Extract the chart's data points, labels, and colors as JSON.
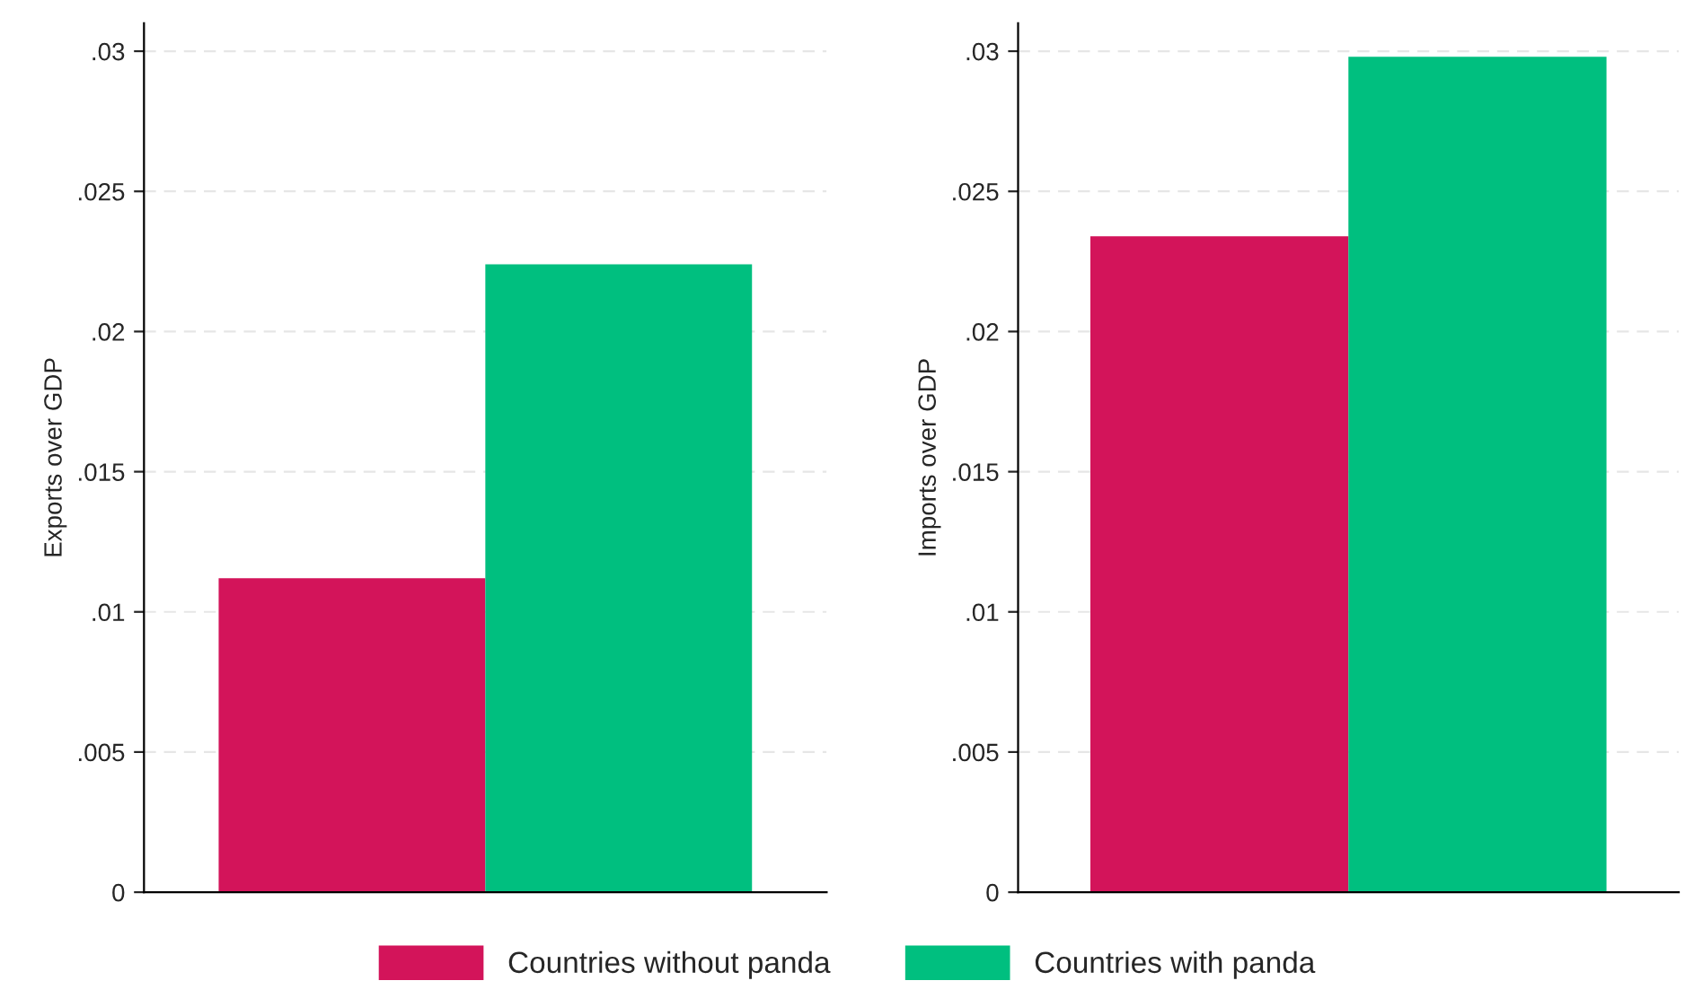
{
  "chart_data": [
    {
      "type": "bar",
      "ylabel": "Exports over GDP",
      "categories": [
        null
      ],
      "series": [
        {
          "name": "Countries without panda",
          "color": "#d3145a",
          "values": [
            0.0112
          ]
        },
        {
          "name": "Countries with panda",
          "color": "#00bf7f",
          "values": [
            0.0224
          ]
        }
      ],
      "ylim": [
        0,
        0.031
      ],
      "yticks": [
        0,
        {
          "value": 0.005,
          "label": ".005"
        },
        {
          "value": 0.01,
          "label": ".01"
        },
        {
          "value": 0.015,
          "label": ".015"
        },
        {
          "value": 0.02,
          "label": ".02"
        },
        {
          "value": 0.025,
          "label": ".025"
        },
        {
          "value": 0.03,
          "label": ".03"
        }
      ],
      "grid": "y",
      "legend": "bottom",
      "tick_labels": "y"
    },
    {
      "type": "bar",
      "ylabel": "Imports over GDP",
      "categories": [
        null
      ],
      "series": [
        {
          "name": "Countries without panda",
          "color": "#d3145a",
          "values": [
            0.0234
          ]
        },
        {
          "name": "Countries with panda",
          "color": "#00bf7f",
          "values": [
            0.0298
          ]
        }
      ],
      "ylim": [
        0,
        0.031
      ],
      "yticks": [
        0,
        {
          "value": 0.005,
          "label": ".005"
        },
        {
          "value": 0.01,
          "label": ".01"
        },
        {
          "value": 0.015,
          "label": ".015"
        },
        {
          "value": 0.02,
          "label": ".02"
        },
        {
          "value": 0.025,
          "label": ".025"
        },
        {
          "value": 0.03,
          "label": ".03"
        }
      ],
      "grid": "y",
      "tick_labels": "y"
    }
  ]
}
